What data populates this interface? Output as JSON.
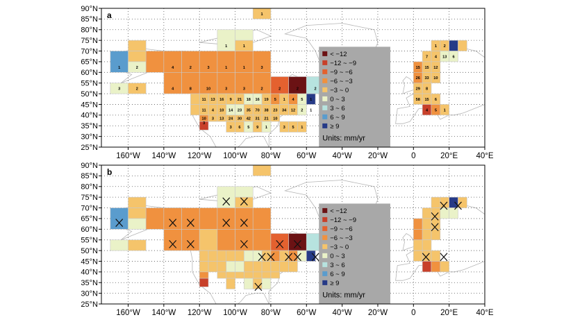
{
  "lat_ticks": [
    "90°N",
    "85°N",
    "80°N",
    "75°N",
    "70°N",
    "65°N",
    "60°N",
    "55°N",
    "50°N",
    "45°N",
    "40°N",
    "35°N",
    "30°N",
    "25°N"
  ],
  "lon_ticks": [
    "160°W",
    "140°W",
    "120°W",
    "100°W",
    "80°W",
    "60°W",
    "40°W",
    "20°W",
    "0",
    "20°E",
    "40°E"
  ],
  "legend_colors": [
    "#6b1214",
    "#c8402a",
    "#e4612f",
    "#f0913f",
    "#f5c46b",
    "#eaf2c8",
    "#b7e3df",
    "#5a9ccd",
    "#263a87"
  ],
  "panels": [
    {
      "label": "a",
      "legend": {
        "items": [
          "< −12",
          "−12 ~ −9",
          "−9 ~ −6",
          "−6 ~ −3",
          "−3 ~ 0",
          "0 ~ 3",
          "3 ~ 6",
          "6 ~ 9",
          "≥ 9"
        ],
        "units": "Units: mm/yr"
      },
      "cell_numbers": [
        {
          "lon": -85,
          "lat": 87.5,
          "t": "1"
        },
        {
          "lon": -165,
          "lat": 62.5,
          "t": "1"
        },
        {
          "lon": -155,
          "lat": 62.5,
          "t": "2"
        },
        {
          "lon": -135,
          "lat": 62.5,
          "t": "4"
        },
        {
          "lon": -125,
          "lat": 62.5,
          "t": "2"
        },
        {
          "lon": -115,
          "lat": 62.5,
          "t": "3"
        },
        {
          "lon": -105,
          "lat": 62.5,
          "t": "1"
        },
        {
          "lon": -95,
          "lat": 62.5,
          "t": "1"
        },
        {
          "lon": -85,
          "lat": 62.5,
          "t": "3"
        },
        {
          "lon": -105,
          "lat": 72.5,
          "t": "1"
        },
        {
          "lon": -95,
          "lat": 72.5,
          "t": "1"
        },
        {
          "lon": -165,
          "lat": 52.5,
          "t": "3"
        },
        {
          "lon": -155,
          "lat": 52.5,
          "t": "2"
        },
        {
          "lon": -135,
          "lat": 52.5,
          "t": "4"
        },
        {
          "lon": -125,
          "lat": 52.5,
          "t": "8"
        },
        {
          "lon": -115,
          "lat": 52.5,
          "t": "10"
        },
        {
          "lon": -105,
          "lat": 52.5,
          "t": "3"
        },
        {
          "lon": -95,
          "lat": 52.5,
          "t": "3"
        },
        {
          "lon": -85,
          "lat": 52.5,
          "t": "2"
        },
        {
          "lon": -75,
          "lat": 52.5,
          "t": "2"
        },
        {
          "lon": -65,
          "lat": 52.5,
          "t": "2"
        },
        {
          "lon": -55,
          "lat": 52.5,
          "t": "2"
        },
        {
          "lon": -117.5,
          "lat": 47.5,
          "t": "11"
        },
        {
          "lon": -112.5,
          "lat": 47.5,
          "t": "13"
        },
        {
          "lon": -107.5,
          "lat": 47.5,
          "t": "16"
        },
        {
          "lon": -102.5,
          "lat": 47.5,
          "t": "9"
        },
        {
          "lon": -97.5,
          "lat": 47.5,
          "t": "21"
        },
        {
          "lon": -92.5,
          "lat": 47.5,
          "t": "18"
        },
        {
          "lon": -87.5,
          "lat": 47.5,
          "t": "16"
        },
        {
          "lon": -82.5,
          "lat": 47.5,
          "t": "19"
        },
        {
          "lon": -77.5,
          "lat": 47.5,
          "t": "5"
        },
        {
          "lon": -72.5,
          "lat": 47.5,
          "t": "1"
        },
        {
          "lon": -67.5,
          "lat": 47.5,
          "t": "4"
        },
        {
          "lon": -62.5,
          "lat": 47.5,
          "t": "5"
        },
        {
          "lon": -57.5,
          "lat": 47.5,
          "t": "1"
        },
        {
          "lon": -117.5,
          "lat": 42.5,
          "t": "11"
        },
        {
          "lon": -112.5,
          "lat": 42.5,
          "t": "4"
        },
        {
          "lon": -107.5,
          "lat": 42.5,
          "t": "10"
        },
        {
          "lon": -102.5,
          "lat": 42.5,
          "t": "14"
        },
        {
          "lon": -97.5,
          "lat": 42.5,
          "t": "23"
        },
        {
          "lon": -92.5,
          "lat": 42.5,
          "t": "35"
        },
        {
          "lon": -87.5,
          "lat": 42.5,
          "t": "70"
        },
        {
          "lon": -82.5,
          "lat": 42.5,
          "t": "38"
        },
        {
          "lon": -77.5,
          "lat": 42.5,
          "t": "23"
        },
        {
          "lon": -72.5,
          "lat": 42.5,
          "t": "34"
        },
        {
          "lon": -67.5,
          "lat": 42.5,
          "t": "12"
        },
        {
          "lon": -62.5,
          "lat": 42.5,
          "t": "2"
        },
        {
          "lon": -57.5,
          "lat": 42.5,
          "t": "1"
        },
        {
          "lon": -117.5,
          "lat": 38.5,
          "t": "10"
        },
        {
          "lon": -112.5,
          "lat": 38.5,
          "t": "3"
        },
        {
          "lon": -107.5,
          "lat": 38.5,
          "t": "13"
        },
        {
          "lon": -102.5,
          "lat": 38.5,
          "t": "24"
        },
        {
          "lon": -97.5,
          "lat": 38.5,
          "t": "30"
        },
        {
          "lon": -92.5,
          "lat": 38.5,
          "t": "42"
        },
        {
          "lon": -87.5,
          "lat": 38.5,
          "t": "31"
        },
        {
          "lon": -82.5,
          "lat": 38.5,
          "t": "21"
        },
        {
          "lon": -77.5,
          "lat": 38.5,
          "t": "10"
        },
        {
          "lon": -117.5,
          "lat": 36.5,
          "t": "3"
        },
        {
          "lon": -102.5,
          "lat": 34.5,
          "t": "3"
        },
        {
          "lon": -97.5,
          "lat": 34.5,
          "t": "6"
        },
        {
          "lon": -92.5,
          "lat": 34.5,
          "t": "5"
        },
        {
          "lon": -87.5,
          "lat": 34.5,
          "t": "9"
        },
        {
          "lon": -82.5,
          "lat": 34.5,
          "t": "1"
        },
        {
          "lon": -72.5,
          "lat": 34.5,
          "t": "3"
        },
        {
          "lon": -67.5,
          "lat": 34.5,
          "t": "5"
        },
        {
          "lon": -62.5,
          "lat": 34.5,
          "t": "1"
        },
        {
          "lon": 12.5,
          "lat": 72.5,
          "t": "1"
        },
        {
          "lon": 17.5,
          "lat": 72.5,
          "t": "2"
        },
        {
          "lon": 7.5,
          "lat": 67.5,
          "t": "7"
        },
        {
          "lon": 12.5,
          "lat": 67.5,
          "t": "4"
        },
        {
          "lon": 17.5,
          "lat": 67.5,
          "t": "13"
        },
        {
          "lon": 22.5,
          "lat": 67.5,
          "t": "6"
        },
        {
          "lon": 2.5,
          "lat": 62.5,
          "t": "15"
        },
        {
          "lon": 7.5,
          "lat": 62.5,
          "t": "15"
        },
        {
          "lon": 12.5,
          "lat": 62.5,
          "t": "12"
        },
        {
          "lon": 2.5,
          "lat": 57.5,
          "t": "26"
        },
        {
          "lon": 7.5,
          "lat": 57.5,
          "t": "33"
        },
        {
          "lon": 12.5,
          "lat": 57.5,
          "t": "10"
        },
        {
          "lon": 2.5,
          "lat": 52.5,
          "t": "29"
        },
        {
          "lon": 7.5,
          "lat": 52.5,
          "t": "8"
        },
        {
          "lon": 2.5,
          "lat": 47.5,
          "t": "58"
        },
        {
          "lon": 7.5,
          "lat": 47.5,
          "t": "15"
        },
        {
          "lon": 12.5,
          "lat": 47.5,
          "t": "6"
        },
        {
          "lon": 7.5,
          "lat": 42.5,
          "t": "4"
        },
        {
          "lon": 12.5,
          "lat": 42.5,
          "t": "5"
        },
        {
          "lon": 17.5,
          "lat": 42.5,
          "t": "1"
        }
      ]
    },
    {
      "label": "b",
      "legend": {
        "items": [
          "< −12",
          "−12 ~ −9",
          "−9 ~ −6",
          "−6 ~ −3",
          "−3 ~ 0",
          "0 ~ 3",
          "3 ~ 6",
          "6 ~ 9",
          "≥ 9"
        ],
        "units": "Units: mm/yr"
      },
      "x_marks": [
        {
          "lon": -105,
          "lat": 73
        },
        {
          "lon": -95,
          "lat": 73
        },
        {
          "lon": -165,
          "lat": 63
        },
        {
          "lon": -135,
          "lat": 63
        },
        {
          "lon": -125,
          "lat": 63
        },
        {
          "lon": -105,
          "lat": 63
        },
        {
          "lon": -95,
          "lat": 63
        },
        {
          "lon": -135,
          "lat": 53
        },
        {
          "lon": -125,
          "lat": 53
        },
        {
          "lon": -95,
          "lat": 53
        },
        {
          "lon": -75,
          "lat": 53
        },
        {
          "lon": -65,
          "lat": 53
        },
        {
          "lon": -85,
          "lat": 47
        },
        {
          "lon": -80,
          "lat": 47
        },
        {
          "lon": -70,
          "lat": 47
        },
        {
          "lon": -65,
          "lat": 47
        },
        {
          "lon": -55,
          "lat": 47
        },
        {
          "lon": -87,
          "lat": 33
        },
        {
          "lon": 17,
          "lat": 71
        },
        {
          "lon": 25,
          "lat": 71
        },
        {
          "lon": 12,
          "lat": 66
        },
        {
          "lon": 12,
          "lat": 61
        },
        {
          "lon": 7,
          "lat": 47
        },
        {
          "lon": 17,
          "lat": 47
        }
      ]
    }
  ]
}
